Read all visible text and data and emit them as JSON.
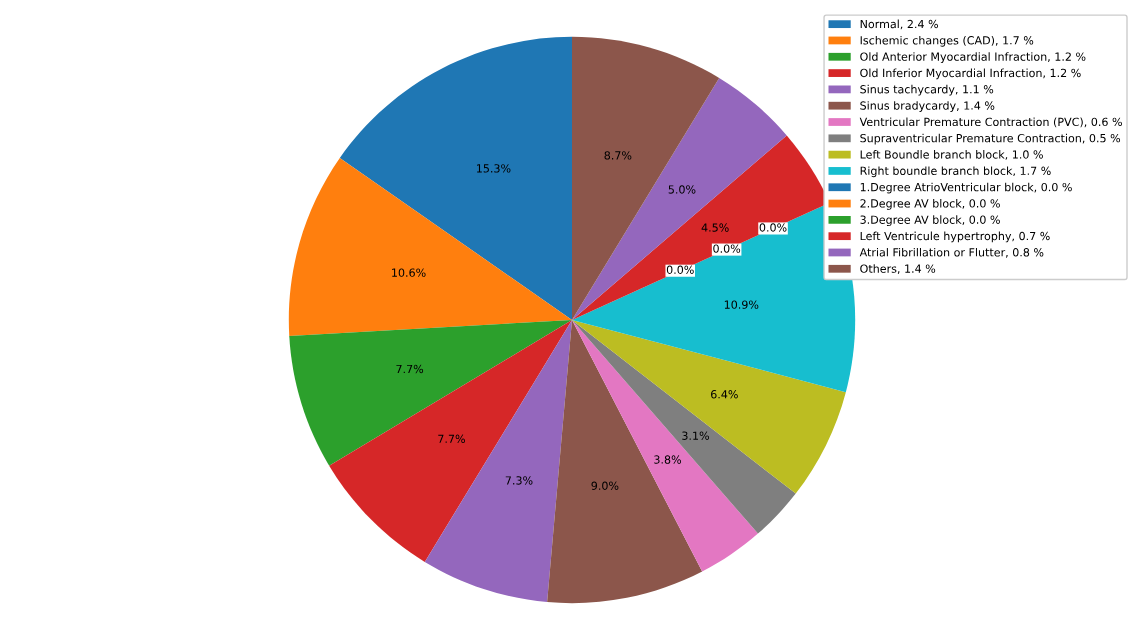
{
  "chart_data": {
    "type": "pie",
    "categories": [
      "Normal, 2.4 %",
      "Ischemic changes (CAD), 1.7 %",
      "Old Anterior Myocardial Infraction, 1.2 %",
      "Old Inferior Myocardial Infraction, 1.2 %",
      "Sinus tachycardy, 1.1 %",
      "Sinus bradycardy, 1.4 %",
      "Ventricular Premature Contraction (PVC), 0.6 %",
      "Supraventricular Premature Contraction, 0.5 %",
      "Left Boundle branch block, 1.0 %",
      "Right boundle branch block, 1.7 %",
      "1.Degree AtrioVentricular block, 0.0 %",
      "2.Degree AV block, 0.0 %",
      "3.Degree AV block, 0.0 %",
      "Left Ventricule hypertrophy, 0.7 %",
      "Atrial Fibrillation or Flutter, 0.8 %",
      "Others, 1.4 %"
    ],
    "values": [
      15.3,
      10.6,
      7.7,
      7.7,
      7.3,
      9.0,
      3.8,
      3.1,
      6.4,
      10.9,
      0.0,
      0.0,
      0.0,
      4.5,
      5.0,
      8.7
    ],
    "value_labels": [
      "15.3%",
      "10.6%",
      "7.7%",
      "7.7%",
      "7.3%",
      "9.0%",
      "3.8%",
      "3.1%",
      "6.4%",
      "10.9%",
      "0.0%",
      "0.0%",
      "0.0%",
      "4.5%",
      "5.0%",
      "8.7%"
    ],
    "colors": [
      "#1f77b4",
      "#ff7f0e",
      "#2ca02c",
      "#d62728",
      "#9467bd",
      "#8c564b",
      "#e377c2",
      "#7f7f7f",
      "#bcbd22",
      "#17becf",
      "#1f77b4",
      "#ff7f0e",
      "#2ca02c",
      "#d62728",
      "#9467bd",
      "#8c564b"
    ],
    "legend": "top right"
  }
}
